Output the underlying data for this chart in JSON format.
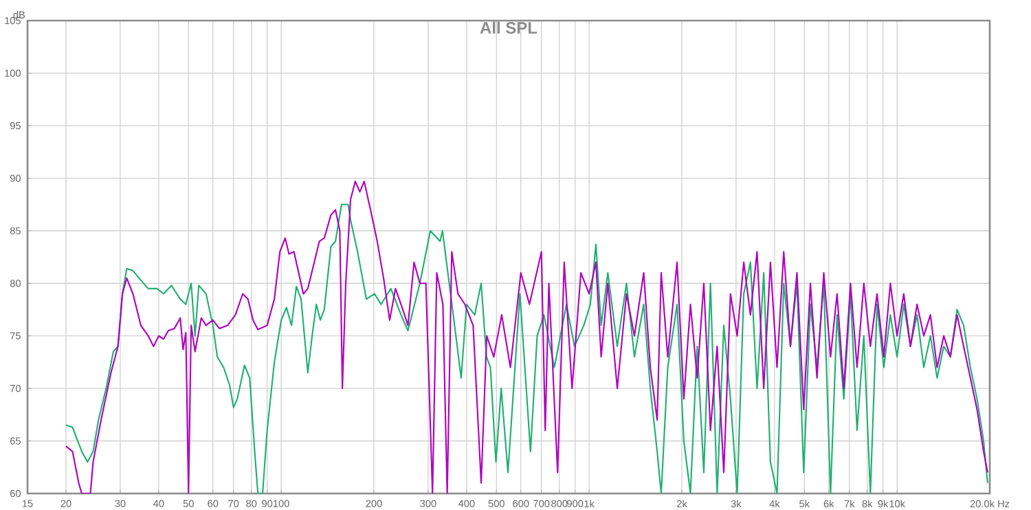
{
  "chart_data": {
    "type": "line",
    "title": "All SPL",
    "ylabel": "dB",
    "grid": true,
    "log": "x",
    "xlim": [
      15,
      20000
    ],
    "ylim": [
      60,
      105
    ],
    "xticks": [
      15,
      20,
      30,
      40,
      50,
      60,
      70,
      80,
      90,
      100,
      200,
      300,
      400,
      500,
      600,
      700,
      800,
      900,
      {
        "value": 1000,
        "label": "1k"
      },
      {
        "value": 2000,
        "label": "2k"
      },
      {
        "value": 3000,
        "label": "3k"
      },
      {
        "value": 4000,
        "label": "4k"
      },
      {
        "value": 5000,
        "label": "5k"
      },
      {
        "value": 6000,
        "label": "6k"
      },
      {
        "value": 7000,
        "label": "7k"
      },
      {
        "value": 8000,
        "label": "8k"
      },
      {
        "value": 9000,
        "label": "9k"
      },
      {
        "value": 10000,
        "label": "10k"
      },
      {
        "value": 20000,
        "label": "20.0k Hz"
      }
    ],
    "yticks": [
      60,
      65,
      70,
      75,
      80,
      85,
      90,
      95,
      100,
      105
    ],
    "series": [
      {
        "color": "#20b070",
        "x": [
          20,
          21,
          22.5,
          23.5,
          24.5,
          25.5,
          27,
          28.5,
          29.5,
          30.5,
          31.5,
          33,
          35,
          37,
          39.5,
          41.5,
          44,
          47,
          49,
          51,
          52.5,
          54,
          57,
          60,
          62,
          65,
          68,
          70,
          72,
          76,
          79,
          82,
          84,
          87,
          90,
          95,
          100,
          104,
          108,
          112,
          116,
          122,
          126,
          130,
          134,
          138,
          145,
          150,
          157,
          165,
          168,
          177,
          189,
          201,
          211,
          227,
          245,
          258,
          282,
          305,
          328,
          334,
          362,
          384,
          400,
          425,
          446,
          464,
          478,
          498,
          518,
          545,
          596,
          645,
          678,
          713,
          771,
          844,
          896,
          961,
          1009,
          1052,
          1094,
          1150,
          1234,
          1322,
          1403,
          1504,
          1580,
          1663,
          1714,
          1800,
          1930,
          2030,
          2133,
          2243,
          2357,
          2477,
          2604,
          2737,
          2877,
          3025,
          3178,
          3340,
          3510,
          3690,
          3880,
          4075,
          4285,
          4505,
          4730,
          4975,
          5230,
          5495,
          5780,
          6080,
          6385,
          6715,
          7060,
          7415,
          7800,
          8190,
          8610,
          9055,
          9510,
          10000,
          10510,
          11050,
          11610,
          12210,
          12830,
          13490,
          14180,
          14900,
          15660,
          16450,
          17300,
          18190,
          19100,
          19680
        ],
        "values": [
          66.5,
          66.3,
          64,
          63,
          64,
          67,
          70,
          73.5,
          74,
          79,
          81.4,
          81.2,
          80.3,
          79.5,
          79.5,
          79,
          79.8,
          78.5,
          78,
          80,
          75,
          79.8,
          79,
          76,
          73,
          72,
          70.3,
          68.2,
          69,
          72.2,
          71,
          64,
          60,
          60,
          66,
          72.5,
          76.5,
          77.7,
          76,
          79.7,
          78.5,
          71.5,
          75,
          78,
          76.5,
          77.5,
          83.5,
          84,
          87.5,
          87.5,
          86,
          83,
          78.5,
          79,
          78,
          79.5,
          77,
          75.5,
          80,
          85,
          84,
          85,
          77,
          71,
          78,
          77,
          80,
          73,
          72,
          63,
          70,
          62,
          79,
          64,
          75,
          77,
          72,
          78,
          74,
          76,
          78,
          83.7,
          76,
          81,
          74,
          80,
          73,
          78,
          70,
          64,
          60,
          72,
          78,
          65,
          60,
          74,
          62,
          80,
          60,
          76,
          69,
          60,
          79,
          82,
          70,
          81,
          63,
          60,
          80,
          74,
          80,
          62,
          78,
          72,
          80,
          60,
          77,
          69,
          79,
          66,
          75,
          60,
          78,
          72,
          77,
          73,
          78,
          74,
          77,
          72,
          75,
          71,
          74,
          73,
          77.5,
          76,
          72,
          69,
          65,
          61
        ]
      },
      {
        "color": "#b000c0",
        "x": [
          20,
          21,
          22,
          22.5,
          24,
          24.5,
          26,
          28,
          29.5,
          30.5,
          31.5,
          33,
          35,
          37,
          38.5,
          40,
          41.5,
          43,
          45,
          47,
          48,
          49,
          50,
          51,
          52.5,
          55,
          57,
          60,
          63,
          67,
          71,
          75,
          78,
          81,
          84,
          90,
          95,
          99,
          103,
          106,
          110,
          118,
          122,
          128,
          133,
          138,
          145,
          150,
          155,
          158,
          162,
          168,
          174,
          180,
          186,
          195,
          205,
          215,
          225,
          235,
          245,
          258,
          270,
          282,
          295,
          310,
          320,
          335,
          346,
          358,
          375,
          395,
          420,
          446,
          465,
          490,
          520,
          555,
          600,
          640,
          700,
          720,
          740,
          790,
          830,
          880,
          940,
          1000,
          1052,
          1094,
          1150,
          1234,
          1322,
          1403,
          1504,
          1580,
          1663,
          1714,
          1800,
          1930,
          2030,
          2133,
          2243,
          2357,
          2477,
          2604,
          2737,
          2877,
          3025,
          3178,
          3340,
          3510,
          3690,
          3880,
          4075,
          4285,
          4505,
          4730,
          4975,
          5230,
          5495,
          5780,
          6080,
          6385,
          6715,
          7060,
          7415,
          7800,
          8190,
          8610,
          9055,
          9510,
          10000,
          10510,
          11050,
          11610,
          12210,
          12830,
          13490,
          14180,
          14900,
          15660,
          16450,
          17300,
          18190,
          19100,
          19680
        ],
        "values": [
          64.5,
          64,
          61,
          60,
          60,
          63,
          67,
          71.5,
          74,
          79,
          80.5,
          79,
          76,
          75,
          74,
          75,
          74.7,
          75.5,
          75.7,
          76.7,
          73.7,
          75.3,
          60,
          76,
          73.5,
          76.7,
          76,
          76.5,
          75.7,
          76,
          77,
          79,
          78.5,
          76.5,
          75.6,
          76,
          78.5,
          83,
          84.3,
          82.8,
          83,
          79,
          79.5,
          82,
          84,
          84.3,
          86.5,
          87,
          85,
          70,
          80,
          88,
          89.7,
          88.7,
          89.7,
          87,
          84,
          80.5,
          76.5,
          79.5,
          78,
          76,
          82,
          80,
          80,
          60,
          81,
          78,
          60,
          83,
          79,
          78,
          76,
          61,
          75,
          73,
          77,
          72,
          81,
          78,
          83,
          66,
          80,
          62,
          82,
          70,
          81,
          79,
          82,
          73,
          80,
          70,
          79,
          75,
          81,
          72,
          67,
          81,
          73,
          82,
          69,
          78,
          71,
          80,
          66,
          74,
          62,
          79,
          75,
          82,
          77,
          83,
          70,
          82,
          72,
          83,
          74,
          81,
          68,
          80,
          71,
          81,
          73,
          79,
          70,
          80,
          72,
          80,
          74,
          79,
          73,
          80,
          75,
          79,
          74,
          78,
          75,
          77,
          72,
          75,
          73,
          77,
          74,
          71,
          68,
          64,
          62
        ]
      }
    ]
  }
}
